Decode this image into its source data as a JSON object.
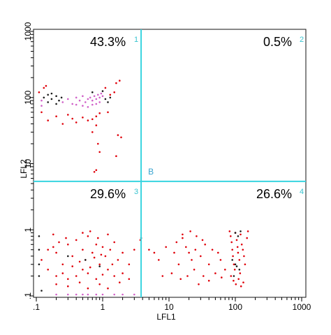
{
  "chart_data": {
    "type": "scatter",
    "title": "",
    "xlabel": "LFL1",
    "ylabel": "LFL2",
    "x_scale": "log",
    "y_scale": "log",
    "xlim": [
      0.1,
      1000
    ],
    "ylim": [
      0.1,
      1000
    ],
    "x_ticks": [
      ".1",
      "1",
      "10",
      "100",
      "1000"
    ],
    "y_ticks": [
      ".1",
      "1",
      "10",
      "100",
      "1000"
    ],
    "gate_label": "B",
    "gate": {
      "x": 3.8,
      "y": 5.4
    },
    "grid": false,
    "legend": "none",
    "quadrants": [
      {
        "number": "1",
        "percent": "43.3%",
        "position": "upper-left"
      },
      {
        "number": "2",
        "percent": "0.5%",
        "position": "upper-right"
      },
      {
        "number": "3",
        "percent": "29.6%",
        "position": "lower-left"
      },
      {
        "number": "4",
        "percent": "26.6%",
        "position": "lower-right"
      }
    ],
    "series": [
      {
        "color": "#e0000a",
        "points": [
          [
            0.12,
            60
          ],
          [
            0.15,
            45
          ],
          [
            0.2,
            52
          ],
          [
            0.25,
            40
          ],
          [
            0.3,
            55
          ],
          [
            0.35,
            48
          ],
          [
            0.4,
            42
          ],
          [
            0.5,
            50
          ],
          [
            0.6,
            45
          ],
          [
            0.7,
            47
          ],
          [
            0.8,
            52
          ],
          [
            0.9,
            58
          ],
          [
            1.2,
            60
          ],
          [
            1.3,
            110
          ],
          [
            1.5,
            120
          ],
          [
            1.8,
            180
          ],
          [
            1.6,
            165
          ],
          [
            1.1,
            140
          ],
          [
            0.7,
            30
          ],
          [
            0.8,
            38
          ],
          [
            0.9,
            15
          ],
          [
            0.85,
            20
          ],
          [
            1.7,
            27
          ],
          [
            1.9,
            25
          ],
          [
            1.6,
            13
          ],
          [
            0.8,
            8
          ],
          [
            0.75,
            7.5
          ],
          [
            0.13,
            140
          ],
          [
            0.11,
            120
          ],
          [
            0.14,
            150
          ],
          [
            0.12,
            0.35
          ],
          [
            0.15,
            0.5
          ],
          [
            0.18,
            0.55
          ],
          [
            0.2,
            0.45
          ],
          [
            0.25,
            0.3
          ],
          [
            0.3,
            0.6
          ],
          [
            0.35,
            0.4
          ],
          [
            0.4,
            0.7
          ],
          [
            0.5,
            0.5
          ],
          [
            0.55,
            0.35
          ],
          [
            0.6,
            0.8
          ],
          [
            0.7,
            0.45
          ],
          [
            0.8,
            0.6
          ],
          [
            0.9,
            0.3
          ],
          [
            1.0,
            0.55
          ],
          [
            1.1,
            0.4
          ],
          [
            1.3,
            0.5
          ],
          [
            1.5,
            0.65
          ],
          [
            1.7,
            0.35
          ],
          [
            2.0,
            0.45
          ],
          [
            2.5,
            0.3
          ],
          [
            3.0,
            0.5
          ],
          [
            0.15,
            0.25
          ],
          [
            0.2,
            0.2
          ],
          [
            0.25,
            0.22
          ],
          [
            0.3,
            0.18
          ],
          [
            0.4,
            0.2
          ],
          [
            0.5,
            0.25
          ],
          [
            0.6,
            0.22
          ],
          [
            0.8,
            0.18
          ],
          [
            1.0,
            0.21
          ],
          [
            1.2,
            0.25
          ],
          [
            1.5,
            0.2
          ],
          [
            2.0,
            0.22
          ],
          [
            2.5,
            0.18
          ],
          [
            0.2,
            0.15
          ],
          [
            0.3,
            0.14
          ],
          [
            0.45,
            0.16
          ],
          [
            0.6,
            0.13
          ],
          [
            0.9,
            0.15
          ],
          [
            1.2,
            0.13
          ],
          [
            1.8,
            0.16
          ],
          [
            0.35,
            0.28
          ],
          [
            0.45,
            0.33
          ],
          [
            0.65,
            0.27
          ],
          [
            0.75,
            0.38
          ],
          [
            0.95,
            0.42
          ],
          [
            1.4,
            0.3
          ],
          [
            0.22,
            0.65
          ],
          [
            0.28,
            0.75
          ],
          [
            0.18,
            0.85
          ],
          [
            0.5,
            0.9
          ],
          [
            0.65,
            0.95
          ],
          [
            0.85,
            0.75
          ],
          [
            1.2,
            0.85
          ],
          [
            3.7,
            0.7
          ],
          [
            5,
            0.5
          ],
          [
            6,
            0.45
          ],
          [
            7,
            0.35
          ],
          [
            9,
            0.55
          ],
          [
            12,
            0.45
          ],
          [
            14,
            0.3
          ],
          [
            16,
            0.75
          ],
          [
            18,
            0.55
          ],
          [
            20,
            0.45
          ],
          [
            22,
            0.35
          ],
          [
            25,
            0.5
          ],
          [
            30,
            0.4
          ],
          [
            35,
            0.6
          ],
          [
            40,
            0.3
          ],
          [
            45,
            0.5
          ],
          [
            55,
            0.45
          ],
          [
            60,
            0.35
          ],
          [
            70,
            0.25
          ],
          [
            8,
            0.2
          ],
          [
            11,
            0.22
          ],
          [
            15,
            0.18
          ],
          [
            19,
            0.2
          ],
          [
            24,
            0.25
          ],
          [
            28,
            0.15
          ],
          [
            33,
            0.2
          ],
          [
            40,
            0.17
          ],
          [
            50,
            0.22
          ],
          [
            62,
            0.19
          ],
          [
            13,
            0.65
          ],
          [
            16,
            0.85
          ],
          [
            21,
            0.95
          ],
          [
            26,
            0.8
          ],
          [
            32,
            0.7
          ],
          [
            82,
            0.95
          ],
          [
            85,
            0.8
          ],
          [
            88,
            0.65
          ],
          [
            90,
            0.5
          ],
          [
            92,
            0.4
          ],
          [
            95,
            0.3
          ],
          [
            98,
            0.25
          ],
          [
            100,
            0.9
          ],
          [
            105,
            0.7
          ],
          [
            108,
            0.55
          ],
          [
            110,
            0.45
          ],
          [
            115,
            0.35
          ],
          [
            118,
            0.22
          ],
          [
            120,
            0.85
          ],
          [
            125,
            0.6
          ],
          [
            130,
            0.5
          ],
          [
            135,
            0.4
          ],
          [
            140,
            0.3
          ],
          [
            150,
            0.75
          ],
          [
            155,
            0.95
          ],
          [
            86,
            0.2
          ],
          [
            94,
            0.17
          ],
          [
            102,
            0.15
          ],
          [
            112,
            0.18
          ],
          [
            122,
            0.14
          ],
          [
            132,
            0.16
          ]
        ]
      },
      {
        "color": "#d060c8",
        "points": [
          [
            0.25,
            85
          ],
          [
            0.3,
            95
          ],
          [
            0.35,
            80
          ],
          [
            0.4,
            100
          ],
          [
            0.45,
            90
          ],
          [
            0.5,
            105
          ],
          [
            0.55,
            85
          ],
          [
            0.6,
            95
          ],
          [
            0.65,
            100
          ],
          [
            0.7,
            90
          ],
          [
            0.75,
            105
          ],
          [
            0.8,
            95
          ],
          [
            0.85,
            110
          ],
          [
            0.9,
            100
          ],
          [
            0.95,
            115
          ],
          [
            1.0,
            105
          ],
          [
            0.4,
            78
          ],
          [
            0.5,
            75
          ],
          [
            0.6,
            72
          ],
          [
            0.7,
            78
          ],
          [
            0.8,
            80
          ],
          [
            0.9,
            85
          ],
          [
            0.12,
            90
          ],
          [
            0.12,
            75
          ],
          [
            0.2,
            0.105
          ],
          [
            0.3,
            0.105
          ],
          [
            0.4,
            0.105
          ],
          [
            0.5,
            0.105
          ],
          [
            0.6,
            0.105
          ],
          [
            0.8,
            0.105
          ],
          [
            1.0,
            0.105
          ],
          [
            1.5,
            0.105
          ],
          [
            2.0,
            0.105
          ],
          [
            3.0,
            0.105
          ]
        ]
      },
      {
        "color": "#1a1a1a",
        "points": [
          [
            0.13,
            100
          ],
          [
            0.15,
            110
          ],
          [
            0.17,
            95
          ],
          [
            0.2,
            105
          ],
          [
            0.22,
            90
          ],
          [
            0.24,
            100
          ],
          [
            0.2,
            80
          ],
          [
            0.15,
            85
          ],
          [
            0.17,
            115
          ],
          [
            1.1,
            95
          ],
          [
            1.3,
            100
          ],
          [
            1.2,
            85
          ],
          [
            1.0,
            125
          ],
          [
            0.7,
            120
          ],
          [
            0.11,
            0.5
          ],
          [
            0.11,
            0.8
          ],
          [
            0.11,
            0.3
          ],
          [
            0.11,
            0.2
          ],
          [
            0.12,
            0.12
          ],
          [
            0.55,
            0.35
          ],
          [
            0.3,
            0.4
          ],
          [
            0.9,
            0.28
          ],
          [
            3.8,
            0.75
          ],
          [
            100,
            0.9
          ],
          [
            110,
            0.8
          ],
          [
            120,
            0.95
          ],
          [
            90,
            0.35
          ],
          [
            105,
            0.28
          ],
          [
            95,
            0.2
          ],
          [
            115,
            0.25
          ],
          [
            100,
            0.3
          ]
        ]
      }
    ]
  }
}
